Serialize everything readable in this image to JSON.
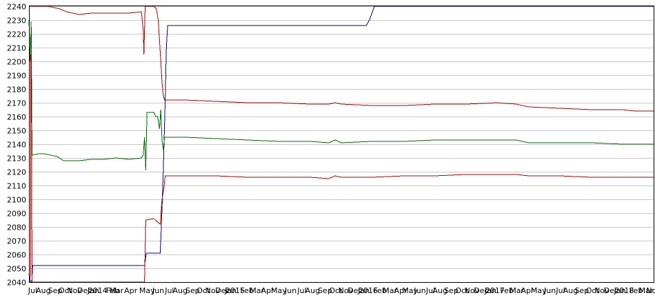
{
  "chart_data": {
    "type": "line",
    "title": "",
    "xlabel": "",
    "ylabel": "",
    "ylim": [
      2040,
      2240
    ],
    "yticks": [
      2040,
      2050,
      2060,
      2070,
      2080,
      2090,
      2100,
      2110,
      2120,
      2130,
      2140,
      2150,
      2160,
      2170,
      2180,
      2190,
      2200,
      2210,
      2220,
      2230,
      2240
    ],
    "grid": true,
    "legend": "none",
    "xlim": [
      0,
      100
    ],
    "xtick_labels": [
      {
        "x": 0.6,
        "label": "Jul"
      },
      {
        "x": 2.3,
        "label": "Aug"
      },
      {
        "x": 4.2,
        "label": "Sep"
      },
      {
        "x": 5.8,
        "label": "Oct"
      },
      {
        "x": 7.3,
        "label": "Nov"
      },
      {
        "x": 8.9,
        "label": "Dec"
      },
      {
        "x": 10.3,
        "label": "Jan"
      },
      {
        "x": 11.0,
        "label": "2014"
      },
      {
        "x": 13.4,
        "label": "Feb"
      },
      {
        "x": 14.0,
        "label": "Mar"
      },
      {
        "x": 16.3,
        "label": "Apr"
      },
      {
        "x": 18.9,
        "label": "May"
      },
      {
        "x": 20.7,
        "label": "Jun"
      },
      {
        "x": 22.5,
        "label": "Jul"
      },
      {
        "x": 24.2,
        "label": "Aug"
      },
      {
        "x": 26.2,
        "label": "Sep"
      },
      {
        "x": 27.9,
        "label": "Oct"
      },
      {
        "x": 29.4,
        "label": "Nov"
      },
      {
        "x": 31.0,
        "label": "Dec"
      },
      {
        "x": 32.3,
        "label": "Jan"
      },
      {
        "x": 33.0,
        "label": "2015"
      },
      {
        "x": 34.9,
        "label": "Feb"
      },
      {
        "x": 36.5,
        "label": "Mar"
      },
      {
        "x": 38.2,
        "label": "Apr"
      },
      {
        "x": 40.0,
        "label": "May"
      },
      {
        "x": 41.9,
        "label": "Jun"
      },
      {
        "x": 43.7,
        "label": "Jul"
      },
      {
        "x": 45.4,
        "label": "Aug"
      },
      {
        "x": 47.4,
        "label": "Sep"
      },
      {
        "x": 49.1,
        "label": "Oct"
      },
      {
        "x": 50.7,
        "label": "Nov"
      },
      {
        "x": 52.2,
        "label": "Dec"
      },
      {
        "x": 53.6,
        "label": "Jan"
      },
      {
        "x": 54.3,
        "label": "2016"
      },
      {
        "x": 56.2,
        "label": "Feb"
      },
      {
        "x": 57.8,
        "label": "Mar"
      },
      {
        "x": 59.5,
        "label": "Apr"
      },
      {
        "x": 61.0,
        "label": "May"
      },
      {
        "x": 62.6,
        "label": "Jun"
      },
      {
        "x": 64.3,
        "label": "Jul"
      },
      {
        "x": 65.8,
        "label": "Aug"
      },
      {
        "x": 67.6,
        "label": "Sep"
      },
      {
        "x": 69.3,
        "label": "Oct"
      },
      {
        "x": 70.9,
        "label": "Nov"
      },
      {
        "x": 72.4,
        "label": "Dec"
      },
      {
        "x": 73.9,
        "label": "Jan"
      },
      {
        "x": 74.6,
        "label": "2017"
      },
      {
        "x": 76.5,
        "label": "Feb"
      },
      {
        "x": 78.1,
        "label": "Mar"
      },
      {
        "x": 79.8,
        "label": "Apr"
      },
      {
        "x": 81.6,
        "label": "May"
      },
      {
        "x": 83.4,
        "label": "Jun"
      },
      {
        "x": 85.1,
        "label": "Jul"
      },
      {
        "x": 86.7,
        "label": "Aug"
      },
      {
        "x": 88.5,
        "label": "Sep"
      },
      {
        "x": 90.2,
        "label": "Oct"
      },
      {
        "x": 91.7,
        "label": "Nov"
      },
      {
        "x": 93.2,
        "label": "Dec"
      },
      {
        "x": 94.6,
        "label": "Jan"
      },
      {
        "x": 95.3,
        "label": "2018"
      },
      {
        "x": 97.2,
        "label": "Feb"
      },
      {
        "x": 98.8,
        "label": "Mar"
      },
      {
        "x": 100.0,
        "label": "Nov"
      }
    ],
    "series": [
      {
        "color": "#000080",
        "points": [
          [
            0,
            2046
          ],
          [
            0.25,
            2040
          ],
          [
            0.45,
            2040
          ],
          [
            0.6,
            2052
          ],
          [
            18.5,
            2052
          ],
          [
            18.8,
            2061
          ],
          [
            21.0,
            2061
          ],
          [
            21.2,
            2080
          ],
          [
            21.5,
            2120
          ],
          [
            21.8,
            2170
          ],
          [
            22.0,
            2210
          ],
          [
            22.2,
            2226
          ],
          [
            54.0,
            2226
          ],
          [
            54.5,
            2230
          ],
          [
            55.0,
            2236
          ],
          [
            55.3,
            2240
          ],
          [
            100,
            2240
          ]
        ]
      },
      {
        "color": "#006400",
        "points": [
          [
            0,
            2230
          ],
          [
            0.2,
            2200
          ],
          [
            0.35,
            2229
          ],
          [
            0.5,
            2132
          ],
          [
            1.5,
            2133
          ],
          [
            2.5,
            2133
          ],
          [
            3.5,
            2132
          ],
          [
            4.5,
            2131
          ],
          [
            5.5,
            2128
          ],
          [
            8,
            2128
          ],
          [
            10,
            2129
          ],
          [
            12,
            2129
          ],
          [
            14,
            2130
          ],
          [
            16,
            2129
          ],
          [
            18.0,
            2130
          ],
          [
            18.3,
            2132
          ],
          [
            18.5,
            2145
          ],
          [
            18.7,
            2121
          ],
          [
            18.9,
            2163
          ],
          [
            20.0,
            2163
          ],
          [
            20.3,
            2160
          ],
          [
            20.6,
            2160
          ],
          [
            20.9,
            2151
          ],
          [
            21.1,
            2165
          ],
          [
            21.3,
            2143
          ],
          [
            21.5,
            2136
          ],
          [
            21.7,
            2145
          ],
          [
            25,
            2145
          ],
          [
            30,
            2144
          ],
          [
            35,
            2143
          ],
          [
            40,
            2142
          ],
          [
            45,
            2142
          ],
          [
            48,
            2141
          ],
          [
            49,
            2143
          ],
          [
            50,
            2141
          ],
          [
            55,
            2142
          ],
          [
            60,
            2142
          ],
          [
            65,
            2143
          ],
          [
            70,
            2143
          ],
          [
            75,
            2143
          ],
          [
            78,
            2143
          ],
          [
            80,
            2141
          ],
          [
            85,
            2141
          ],
          [
            90,
            2141
          ],
          [
            95,
            2140
          ],
          [
            100,
            2140
          ]
        ]
      },
      {
        "color": "#a00000",
        "points": [
          [
            0,
            2240
          ],
          [
            3,
            2240
          ],
          [
            5,
            2238
          ],
          [
            6,
            2236
          ],
          [
            8,
            2234
          ],
          [
            10,
            2235
          ],
          [
            12,
            2235
          ],
          [
            14,
            2235
          ],
          [
            16,
            2235
          ],
          [
            18.0,
            2236
          ],
          [
            18.3,
            2222
          ],
          [
            18.4,
            2205
          ],
          [
            18.6,
            2240
          ],
          [
            20,
            2240
          ],
          [
            20.4,
            2238
          ],
          [
            20.7,
            2230
          ],
          [
            20.9,
            2215
          ],
          [
            21.1,
            2200
          ],
          [
            21.3,
            2185
          ],
          [
            21.5,
            2175
          ],
          [
            21.7,
            2172
          ],
          [
            25,
            2172
          ],
          [
            30,
            2171
          ],
          [
            35,
            2170
          ],
          [
            40,
            2170
          ],
          [
            45,
            2169
          ],
          [
            48,
            2169
          ],
          [
            49,
            2170
          ],
          [
            50,
            2169
          ],
          [
            55,
            2168
          ],
          [
            60,
            2168
          ],
          [
            65,
            2169
          ],
          [
            70,
            2169
          ],
          [
            75,
            2170
          ],
          [
            78,
            2169
          ],
          [
            80,
            2167
          ],
          [
            85,
            2166
          ],
          [
            90,
            2165
          ],
          [
            95,
            2165
          ],
          [
            97,
            2164
          ],
          [
            100,
            2164
          ]
        ]
      },
      {
        "color": "#a00000",
        "points": [
          [
            0,
            2040
          ],
          [
            0.25,
            2045
          ],
          [
            0.3,
            2205
          ],
          [
            0.4,
            2180
          ],
          [
            0.5,
            2040
          ],
          [
            18.5,
            2040
          ],
          [
            18.7,
            2085
          ],
          [
            20,
            2086
          ],
          [
            20.7,
            2083
          ],
          [
            21.0,
            2082
          ],
          [
            21.3,
            2100
          ],
          [
            21.6,
            2108
          ],
          [
            21.8,
            2117
          ],
          [
            25,
            2117
          ],
          [
            30,
            2117
          ],
          [
            35,
            2116
          ],
          [
            40,
            2116
          ],
          [
            45,
            2116
          ],
          [
            48,
            2115
          ],
          [
            49,
            2117
          ],
          [
            50,
            2116
          ],
          [
            55,
            2116
          ],
          [
            60,
            2117
          ],
          [
            65,
            2117
          ],
          [
            70,
            2118
          ],
          [
            75,
            2118
          ],
          [
            78,
            2118
          ],
          [
            80,
            2117
          ],
          [
            85,
            2117
          ],
          [
            90,
            2116
          ],
          [
            95,
            2116
          ],
          [
            100,
            2116
          ]
        ]
      }
    ]
  }
}
